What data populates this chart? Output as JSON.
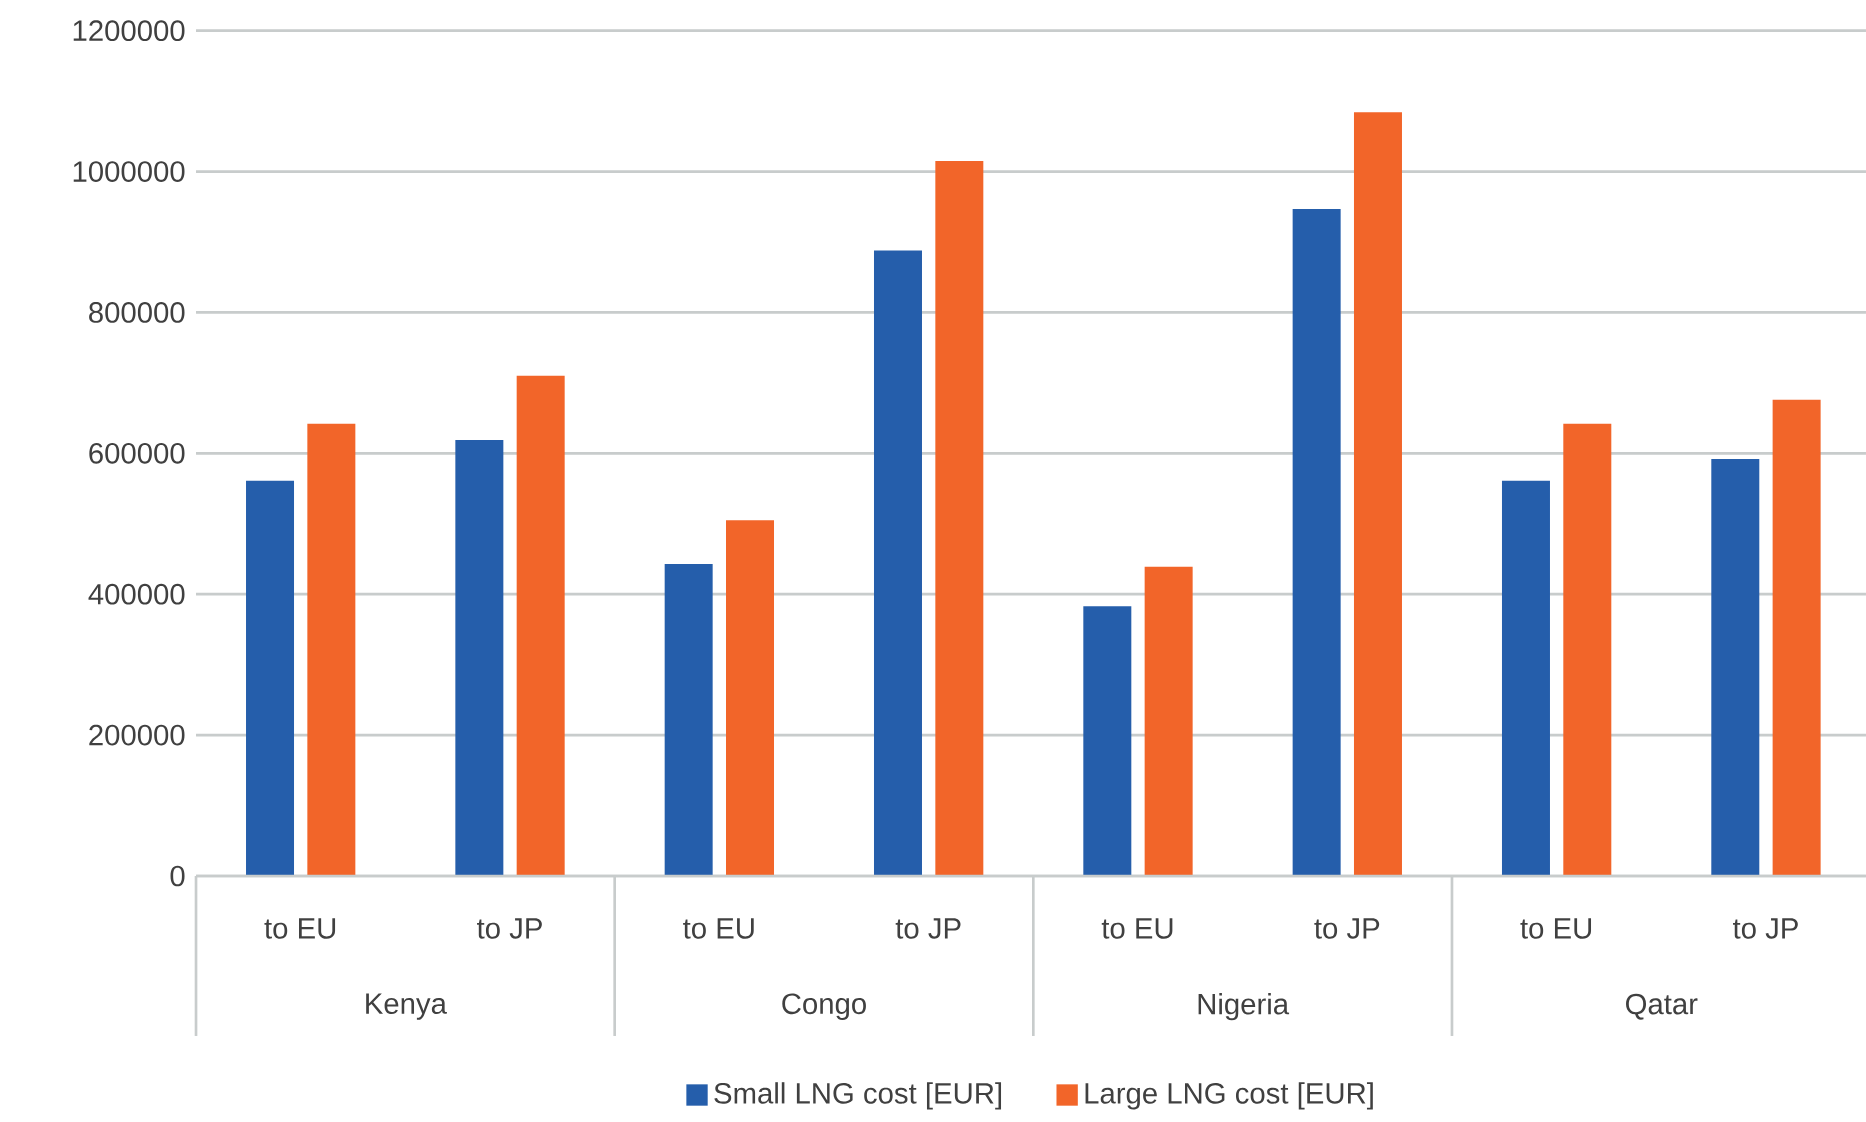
{
  "chart_data": {
    "type": "bar",
    "categories": [
      "to EU",
      "to JP",
      "to EU",
      "to JP",
      "to EU",
      "to JP",
      "to EU",
      "to JP"
    ],
    "series": [
      {
        "name": "Small LNG cost [EUR]",
        "color": "#255eab",
        "values": [
          561000,
          619000,
          443000,
          888000,
          383000,
          947000,
          561000,
          592000
        ]
      },
      {
        "name": "Large LNG cost [EUR]",
        "color": "#f26529",
        "values": [
          642000,
          710000,
          505000,
          1015000,
          439000,
          1084000,
          642000,
          676000
        ]
      }
    ],
    "annotations": [
      "Kenya",
      "Congo",
      "Nigeria",
      "Qatar"
    ],
    "ylim": [
      0,
      1200000
    ],
    "yticks": [
      0,
      200000,
      400000,
      600000,
      800000,
      1000000,
      1200000
    ],
    "grid": "y",
    "legend": "bottom"
  }
}
